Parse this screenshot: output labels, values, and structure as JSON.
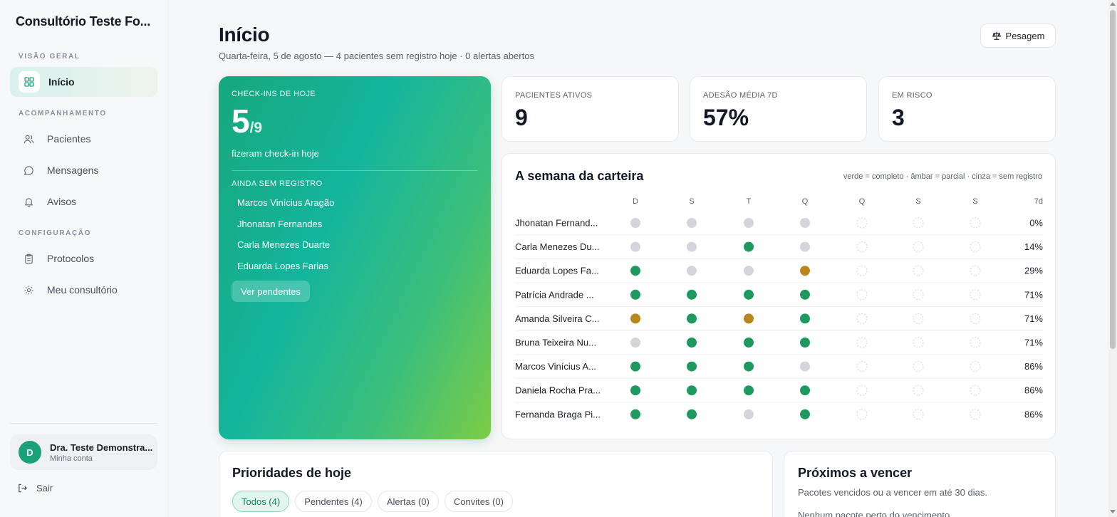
{
  "sidebar": {
    "brand": "Consultório Teste Fo...",
    "sections": {
      "overview": "VISÃO GERAL",
      "tracking": "ACOMPANHAMENTO",
      "config": "CONFIGURAÇÃO"
    },
    "items": [
      {
        "label": "Início",
        "icon": "grid-icon",
        "active": true
      },
      {
        "label": "Pacientes",
        "icon": "users-icon"
      },
      {
        "label": "Mensagens",
        "icon": "chat-icon"
      },
      {
        "label": "Avisos",
        "icon": "bell-icon"
      },
      {
        "label": "Protocolos",
        "icon": "clipboard-icon"
      },
      {
        "label": "Meu consultório",
        "icon": "gear-icon"
      }
    ],
    "user": {
      "initial": "D",
      "name": "Dra. Teste Demonstra...",
      "sub": "Minha conta"
    },
    "logout": "Sair"
  },
  "header": {
    "title": "Início",
    "subtitle": "Quarta-feira, 5 de agosto — 4 pacientes sem registro hoje · 0 alertas abertos",
    "pesagem_label": "Pesagem"
  },
  "hero": {
    "label": "CHECK-INS DE HOJE",
    "done": "5",
    "total": "/9",
    "desc": "fizeram check-in hoje",
    "pending_label": "AINDA SEM REGISTRO",
    "pending": [
      "Marcos Vinícius Aragão",
      "Jhonatan Fernandes",
      "Carla Menezes Duarte",
      "Eduarda Lopes Farias"
    ],
    "button": "Ver pendentes"
  },
  "stats": [
    {
      "label": "PACIENTES ATIVOS",
      "value": "9"
    },
    {
      "label": "ADESÃO MÉDIA 7D",
      "value": "57%"
    },
    {
      "label": "EM RISCO",
      "value": "3"
    }
  ],
  "week": {
    "title": "A semana da carteira",
    "legend": "verde = completo · âmbar = parcial · cinza = sem registro",
    "days": [
      "D",
      "S",
      "T",
      "Q",
      "Q",
      "S",
      "S"
    ],
    "pct_header": "7d",
    "rows": [
      {
        "name": "Jhonatan Fernand...",
        "cells": [
          "none",
          "none",
          "none",
          "none",
          "empty",
          "empty",
          "empty"
        ],
        "pct": "0%"
      },
      {
        "name": "Carla Menezes Du...",
        "cells": [
          "none",
          "none",
          "full",
          "none",
          "empty",
          "empty",
          "empty"
        ],
        "pct": "14%"
      },
      {
        "name": "Eduarda Lopes Fa...",
        "cells": [
          "full",
          "none",
          "none",
          "partial",
          "empty",
          "empty",
          "empty"
        ],
        "pct": "29%"
      },
      {
        "name": "Patrícia Andrade ...",
        "cells": [
          "full",
          "full",
          "full",
          "full",
          "empty",
          "empty",
          "empty"
        ],
        "pct": "71%"
      },
      {
        "name": "Amanda Silveira C...",
        "cells": [
          "partial",
          "full",
          "partial",
          "full",
          "empty",
          "empty",
          "empty"
        ],
        "pct": "71%"
      },
      {
        "name": "Bruna Teixeira Nu...",
        "cells": [
          "none",
          "full",
          "full",
          "full",
          "empty",
          "empty",
          "empty"
        ],
        "pct": "71%"
      },
      {
        "name": "Marcos Vinícius A...",
        "cells": [
          "full",
          "full",
          "full",
          "none",
          "empty",
          "empty",
          "empty"
        ],
        "pct": "86%"
      },
      {
        "name": "Daniela Rocha Pra...",
        "cells": [
          "full",
          "full",
          "full",
          "full",
          "empty",
          "empty",
          "empty"
        ],
        "pct": "86%"
      },
      {
        "name": "Fernanda Braga Pi...",
        "cells": [
          "full",
          "full",
          "none",
          "full",
          "empty",
          "empty",
          "empty"
        ],
        "pct": "86%"
      }
    ],
    "colors": {
      "full": "#1f9a5e",
      "partial": "#b8891a",
      "none": "#d3d5da",
      "empty": "#d3d5da"
    }
  },
  "priorities": {
    "title": "Prioridades de hoje",
    "chips": [
      "Todos (4)",
      "Pendentes (4)",
      "Alertas (0)",
      "Convites (0)"
    ]
  },
  "upcoming": {
    "title": "Próximos a vencer",
    "subtitle": "Pacotes vencidos ou a vencer em até 30 dias.",
    "empty": "Nenhum pacote perto do vencimento."
  }
}
